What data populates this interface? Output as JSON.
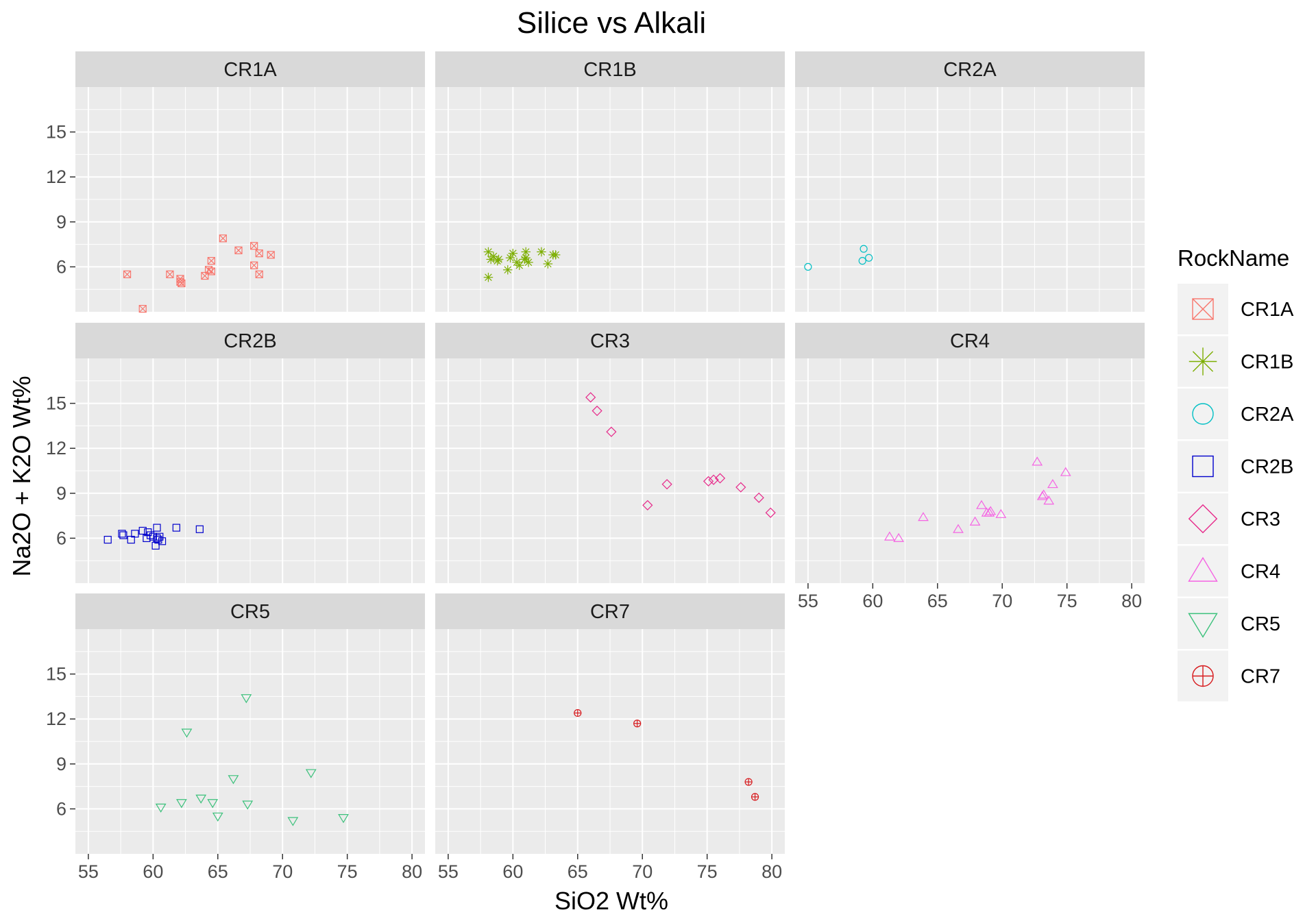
{
  "chart_data": {
    "type": "scatter",
    "title": "Silice vs Alkali",
    "xlabel": "SiO2 Wt%",
    "ylabel": "Na2O + K2O Wt%",
    "xlim": [
      54,
      81
    ],
    "ylim": [
      3,
      18
    ],
    "x_ticks": [
      55,
      60,
      65,
      70,
      75,
      80
    ],
    "y_ticks": [
      6,
      9,
      12,
      15
    ],
    "grid": true,
    "legend_title": "RockName",
    "legend_position": "right",
    "series": [
      {
        "name": "CR1A",
        "color": "#F8766D",
        "shape": "square-cross",
        "points": [
          [
            58.0,
            5.5
          ],
          [
            59.2,
            3.2
          ],
          [
            61.3,
            5.5
          ],
          [
            62.1,
            5.2
          ],
          [
            62.2,
            4.9
          ],
          [
            62.1,
            5.0
          ],
          [
            64.0,
            5.4
          ],
          [
            64.3,
            5.8
          ],
          [
            64.5,
            6.4
          ],
          [
            64.5,
            5.7
          ],
          [
            65.4,
            7.9
          ],
          [
            66.6,
            7.1
          ],
          [
            67.8,
            7.4
          ],
          [
            67.8,
            6.1
          ],
          [
            68.2,
            6.9
          ],
          [
            68.2,
            5.5
          ],
          [
            69.1,
            6.8
          ]
        ]
      },
      {
        "name": "CR1B",
        "color": "#7CAE00",
        "shape": "asterisk",
        "points": [
          [
            58.1,
            7.0
          ],
          [
            58.1,
            5.3
          ],
          [
            58.3,
            6.5
          ],
          [
            58.5,
            6.7
          ],
          [
            58.8,
            6.4
          ],
          [
            58.9,
            6.5
          ],
          [
            59.6,
            5.8
          ],
          [
            59.8,
            6.6
          ],
          [
            60.0,
            6.9
          ],
          [
            60.3,
            6.3
          ],
          [
            60.5,
            6.1
          ],
          [
            60.9,
            6.5
          ],
          [
            61.0,
            7.0
          ],
          [
            61.2,
            6.3
          ],
          [
            61.0,
            6.6
          ],
          [
            62.2,
            7.0
          ],
          [
            62.7,
            6.2
          ],
          [
            63.1,
            6.8
          ],
          [
            63.3,
            6.8
          ]
        ]
      },
      {
        "name": "CR2A",
        "color": "#00BFC4",
        "shape": "circle",
        "points": [
          [
            55.0,
            6.0
          ],
          [
            59.3,
            7.2
          ],
          [
            59.2,
            6.4
          ],
          [
            59.7,
            6.6
          ]
        ]
      },
      {
        "name": "CR2B",
        "color": "#0000CC",
        "shape": "square",
        "points": [
          [
            56.5,
            5.9
          ],
          [
            57.6,
            6.3
          ],
          [
            57.7,
            6.2
          ],
          [
            58.3,
            5.9
          ],
          [
            58.6,
            6.3
          ],
          [
            59.2,
            6.5
          ],
          [
            59.5,
            6.0
          ],
          [
            59.6,
            6.4
          ],
          [
            59.8,
            6.2
          ],
          [
            60.2,
            5.5
          ],
          [
            60.3,
            6.0
          ],
          [
            60.3,
            6.7
          ],
          [
            60.4,
            5.9
          ],
          [
            60.5,
            6.1
          ],
          [
            60.7,
            5.8
          ],
          [
            61.8,
            6.7
          ],
          [
            63.6,
            6.6
          ],
          [
            60.0,
            6.1
          ]
        ]
      },
      {
        "name": "CR3",
        "color": "#E7298A",
        "shape": "diamond",
        "points": [
          [
            66.0,
            15.4
          ],
          [
            66.5,
            14.5
          ],
          [
            67.6,
            13.1
          ],
          [
            70.4,
            8.2
          ],
          [
            71.9,
            9.6
          ],
          [
            75.1,
            9.8
          ],
          [
            75.5,
            9.9
          ],
          [
            76.0,
            10.0
          ],
          [
            77.6,
            9.4
          ],
          [
            79.0,
            8.7
          ],
          [
            79.9,
            7.7
          ]
        ]
      },
      {
        "name": "CR4",
        "color": "#F564E3",
        "shape": "triangle-up",
        "points": [
          [
            61.3,
            6.1
          ],
          [
            62.0,
            6.0
          ],
          [
            63.9,
            7.4
          ],
          [
            66.6,
            6.6
          ],
          [
            67.9,
            7.1
          ],
          [
            68.4,
            8.2
          ],
          [
            68.8,
            7.7
          ],
          [
            69.1,
            7.8
          ],
          [
            69.9,
            7.6
          ],
          [
            72.7,
            11.1
          ],
          [
            73.1,
            8.8
          ],
          [
            73.2,
            8.9
          ],
          [
            73.6,
            8.5
          ],
          [
            73.9,
            9.6
          ],
          [
            74.9,
            10.4
          ],
          [
            69.0,
            7.7
          ]
        ]
      },
      {
        "name": "CR5",
        "color": "#3BC17B",
        "shape": "triangle-down",
        "points": [
          [
            60.6,
            6.1
          ],
          [
            62.2,
            6.4
          ],
          [
            62.6,
            11.1
          ],
          [
            63.7,
            6.7
          ],
          [
            64.6,
            6.4
          ],
          [
            65.0,
            5.5
          ],
          [
            66.2,
            8.0
          ],
          [
            67.2,
            13.4
          ],
          [
            67.3,
            6.3
          ],
          [
            70.8,
            5.2
          ],
          [
            72.2,
            8.4
          ],
          [
            74.7,
            5.4
          ]
        ]
      },
      {
        "name": "CR7",
        "color": "#D7191C",
        "shape": "circle-plus",
        "points": [
          [
            65.0,
            12.4
          ],
          [
            69.6,
            11.7
          ],
          [
            78.2,
            7.8
          ],
          [
            78.7,
            6.8
          ]
        ]
      }
    ]
  }
}
